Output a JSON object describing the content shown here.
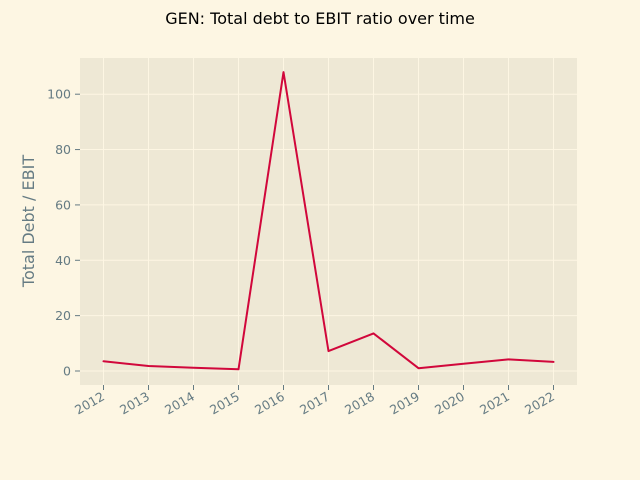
{
  "chart_data": {
    "type": "line",
    "title": "GEN: Total debt to EBIT ratio over time",
    "xlabel": "",
    "ylabel": "Total Debt / EBIT",
    "x": [
      "2012",
      "2013",
      "2014",
      "2015",
      "2016",
      "2017",
      "2018",
      "2019",
      "2020",
      "2021",
      "2022"
    ],
    "series": [
      {
        "values": [
          3.5,
          1.8,
          1.2,
          0.6,
          108.0,
          7.2,
          13.6,
          1.0,
          2.6,
          4.2,
          3.3
        ],
        "color": "#d1073b"
      }
    ],
    "yticks": [
      0,
      20,
      40,
      60,
      80,
      100
    ],
    "ylim": [
      -5,
      113
    ],
    "grid": true,
    "colors": {
      "figure_background": "#fdf6e3",
      "plot_background": "#eee8d5",
      "grid": "#fdf6e3",
      "tick_text": "#657b83"
    }
  }
}
